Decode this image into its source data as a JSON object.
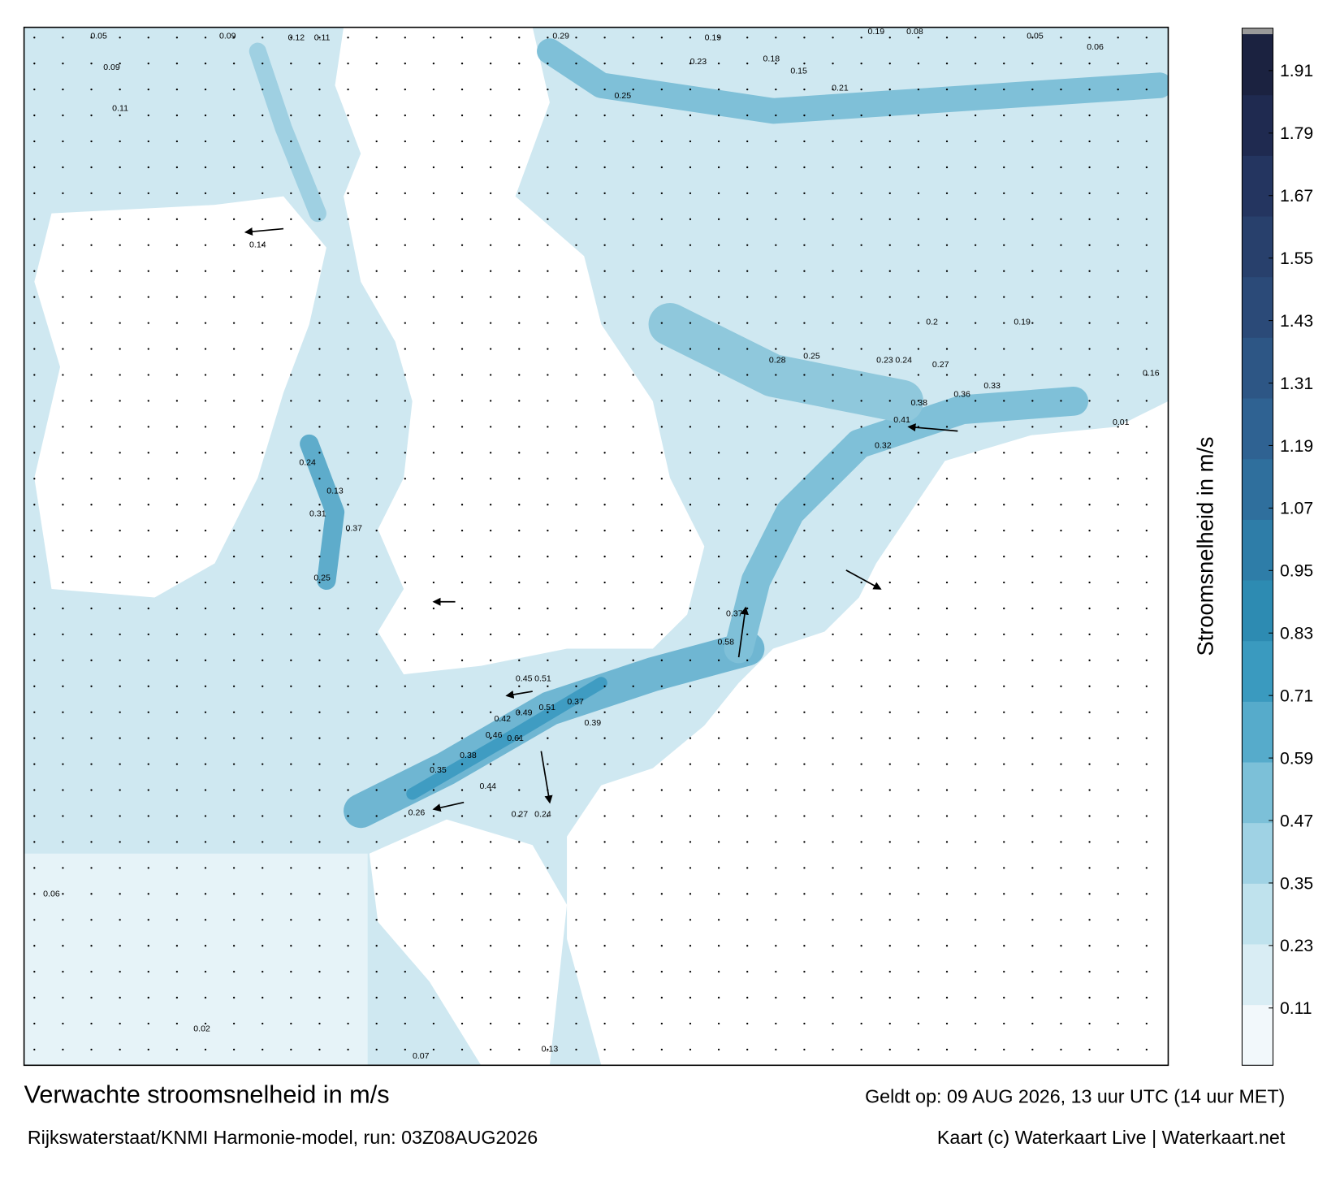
{
  "map": {
    "title": "Verwachte stroomsnelheid in m/s",
    "model": "Rijkswaterstaat/KNMI Harmonie-model, run: 03Z08AUG2026",
    "valid": "Geldt op: 09 AUG 2026, 13 uur UTC (14 uur MET)",
    "credit": "Kaart (c) Waterkaart Live | Waterkaart.net",
    "colorbar": {
      "label": "Stroomsnelheid in m/s",
      "range": [
        0,
        1.98
      ],
      "ticks": [
        0.11,
        0.23,
        0.35,
        0.47,
        0.59,
        0.71,
        0.83,
        0.95,
        1.07,
        1.19,
        1.31,
        1.43,
        1.55,
        1.67,
        1.79,
        1.91
      ],
      "colors": [
        "#f2f8fb",
        "#d9edf4",
        "#bfe2ed",
        "#9fd2e4",
        "#7cc0d8",
        "#56abcb",
        "#3a9abf",
        "#2d8bb2",
        "#2e7da8",
        "#2f6f9d",
        "#2f6292",
        "#2d5685",
        "#2b4a78",
        "#28406c",
        "#243560",
        "#1f2a50",
        "#1b2240"
      ],
      "over_color": "#9a9a9a"
    },
    "current_labels": [
      0.05,
      0.09,
      0.12,
      0.11,
      0.29,
      0.19,
      0.19,
      0.08,
      0.05,
      0.06,
      0.25,
      0.23,
      0.18,
      0.15,
      0.21,
      0.19,
      0.2,
      0.28,
      0.25,
      0.23,
      0.24,
      0.27,
      0.33,
      0.36,
      0.38,
      0.41,
      0.32,
      0.37,
      0.58,
      0.51,
      0.45,
      0.42,
      0.49,
      0.51,
      0.37,
      0.46,
      0.61,
      0.39,
      0.38,
      0.35,
      0.44,
      0.26,
      0.27,
      0.24,
      0.25,
      0.31,
      0.24,
      0.37,
      0.13,
      0.09,
      0.11,
      0.14,
      0.06,
      0.07,
      0.02,
      0.13,
      0.01,
      0.16
    ]
  }
}
